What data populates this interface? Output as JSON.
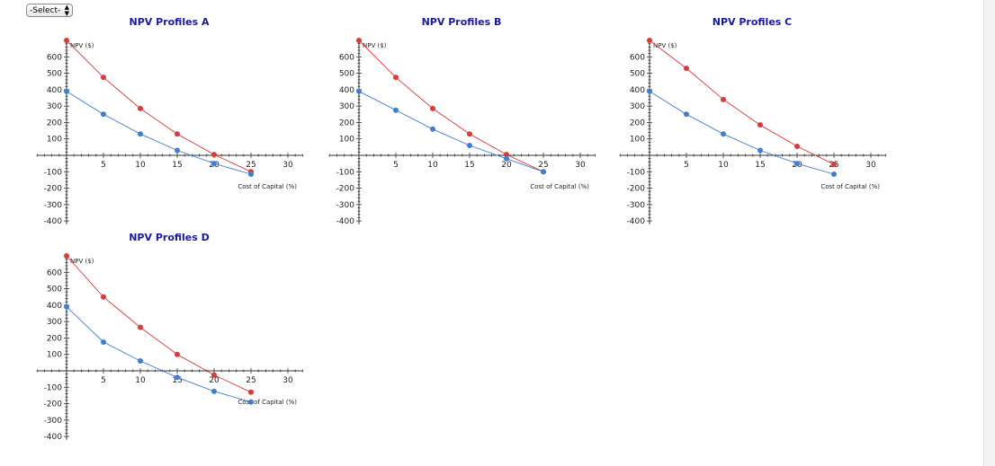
{
  "select": {
    "label": "-Select-"
  },
  "colors": {
    "series_red": "#d93a3a",
    "series_blue": "#3f7fd0",
    "title": "#1a1a9c",
    "axis": "#333333"
  },
  "chart_data": [
    {
      "type": "line",
      "title": "NPV Profiles A",
      "xlabel": "Cost of Capital (%)",
      "ylabel": "NPV ($)",
      "xlim": [
        -4,
        32
      ],
      "ylim": [
        -420,
        700
      ],
      "xticks": [
        5,
        10,
        15,
        20,
        25,
        30
      ],
      "yticks": [
        600,
        500,
        400,
        300,
        200,
        100,
        -100,
        -200,
        -300,
        -400
      ],
      "x": [
        0,
        5,
        10,
        15,
        20,
        25
      ],
      "series": [
        {
          "color": "#d93a3a",
          "values": [
            700,
            475,
            285,
            130,
            5,
            -100
          ]
        },
        {
          "color": "#3f7fd0",
          "values": [
            390,
            250,
            130,
            30,
            -50,
            -115
          ]
        }
      ]
    },
    {
      "type": "line",
      "title": "NPV Profiles B",
      "xlabel": "Cost of Capital (%)",
      "ylabel": "NPV ($)",
      "xlim": [
        -4,
        32
      ],
      "ylim": [
        -420,
        700
      ],
      "xticks": [
        5,
        10,
        15,
        20,
        25,
        30
      ],
      "yticks": [
        600,
        500,
        400,
        300,
        200,
        100,
        -100,
        -200,
        -300,
        -400
      ],
      "x": [
        0,
        5,
        10,
        15,
        20,
        25
      ],
      "series": [
        {
          "color": "#d93a3a",
          "values": [
            700,
            475,
            285,
            130,
            5,
            -100
          ]
        },
        {
          "color": "#3f7fd0",
          "values": [
            390,
            275,
            160,
            60,
            -20,
            -100
          ]
        }
      ]
    },
    {
      "type": "line",
      "title": "NPV Profiles C",
      "xlabel": "Cost of Capital (%)",
      "ylabel": "NPV ($)",
      "xlim": [
        -4,
        32
      ],
      "ylim": [
        -420,
        700
      ],
      "xticks": [
        5,
        10,
        15,
        20,
        25,
        30
      ],
      "yticks": [
        600,
        500,
        400,
        300,
        200,
        100,
        -100,
        -200,
        -300,
        -400
      ],
      "x": [
        0,
        5,
        10,
        15,
        20,
        25
      ],
      "series": [
        {
          "color": "#d93a3a",
          "values": [
            700,
            530,
            340,
            185,
            55,
            -55
          ]
        },
        {
          "color": "#3f7fd0",
          "values": [
            390,
            250,
            130,
            30,
            -50,
            -115
          ]
        }
      ]
    },
    {
      "type": "line",
      "title": "NPV Profiles D",
      "xlabel": "Cost of Capital (%)",
      "ylabel": "NPV ($)",
      "xlim": [
        -4,
        32
      ],
      "ylim": [
        -420,
        700
      ],
      "xticks": [
        5,
        10,
        15,
        20,
        25,
        30
      ],
      "yticks": [
        600,
        500,
        400,
        300,
        200,
        100,
        -100,
        -200,
        -300,
        -400
      ],
      "x": [
        0,
        5,
        10,
        15,
        20,
        25
      ],
      "series": [
        {
          "color": "#d93a3a",
          "values": [
            700,
            450,
            265,
            100,
            -25,
            -130
          ]
        },
        {
          "color": "#3f7fd0",
          "values": [
            390,
            175,
            60,
            -40,
            -125,
            -190
          ]
        }
      ]
    }
  ]
}
